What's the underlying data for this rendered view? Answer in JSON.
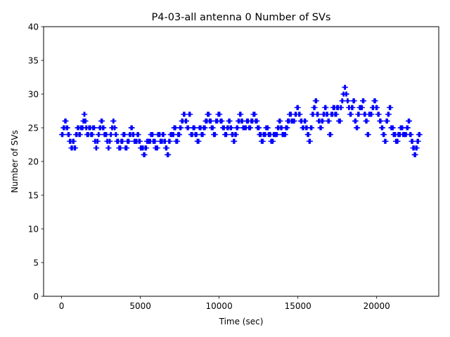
{
  "chart_data": {
    "type": "scatter",
    "title": "P4-03-all antenna 0 Number of SVs",
    "xlabel": "Time (sec)",
    "ylabel": "Number of SVs",
    "xlim": [
      -1140,
      23940
    ],
    "ylim": [
      0,
      40
    ],
    "xticks": [
      0,
      5000,
      10000,
      15000,
      20000
    ],
    "yticks": [
      0,
      5,
      10,
      15,
      20,
      25,
      30,
      35,
      40
    ],
    "marker": "+",
    "color": "#0000ff",
    "segments": [
      {
        "t0": 0,
        "t1": 500,
        "values": [
          24,
          25,
          26,
          25,
          24
        ]
      },
      {
        "t0": 500,
        "t1": 900,
        "values": [
          23,
          22,
          23,
          22
        ]
      },
      {
        "t0": 900,
        "t1": 1300,
        "values": [
          24,
          25,
          24,
          25
        ]
      },
      {
        "t0": 1300,
        "t1": 1600,
        "values": [
          25,
          26,
          27,
          26,
          25
        ]
      },
      {
        "t0": 1600,
        "t1": 2100,
        "values": [
          24,
          25,
          24,
          25
        ]
      },
      {
        "t0": 2100,
        "t1": 2400,
        "values": [
          23,
          22,
          23,
          24
        ]
      },
      {
        "t0": 2400,
        "t1": 2800,
        "values": [
          25,
          26,
          25,
          24
        ]
      },
      {
        "t0": 2800,
        "t1": 3100,
        "values": [
          24,
          23,
          22,
          23
        ]
      },
      {
        "t0": 3100,
        "t1": 3500,
        "values": [
          24,
          25,
          26,
          25,
          24
        ]
      },
      {
        "t0": 3500,
        "t1": 4300,
        "values": [
          23,
          22,
          23,
          24,
          22,
          23
        ]
      },
      {
        "t0": 4300,
        "t1": 4700,
        "values": [
          24,
          25,
          24,
          23
        ]
      },
      {
        "t0": 4700,
        "t1": 5100,
        "values": [
          23,
          24,
          23,
          22
        ]
      },
      {
        "t0": 5100,
        "t1": 5500,
        "values": [
          22,
          21,
          22,
          23
        ]
      },
      {
        "t0": 5500,
        "t1": 6400,
        "values": [
          23,
          24,
          23,
          22,
          24,
          23
        ]
      },
      {
        "t0": 6400,
        "t1": 7000,
        "values": [
          24,
          23,
          22,
          21,
          23,
          24
        ]
      },
      {
        "t0": 7000,
        "t1": 7500,
        "values": [
          24,
          25,
          23,
          24
        ]
      },
      {
        "t0": 7500,
        "t1": 8200,
        "values": [
          25,
          26,
          27,
          26,
          25,
          27
        ]
      },
      {
        "t0": 8200,
        "t1": 9000,
        "values": [
          24,
          25,
          24,
          23,
          25,
          24
        ]
      },
      {
        "t0": 9000,
        "t1": 9500,
        "values": [
          25,
          26,
          27,
          26
        ]
      },
      {
        "t0": 9500,
        "t1": 10500,
        "values": [
          25,
          24,
          26,
          27,
          26,
          25,
          24
        ]
      },
      {
        "t0": 10500,
        "t1": 11000,
        "values": [
          25,
          26,
          25,
          24,
          23
        ]
      },
      {
        "t0": 11000,
        "t1": 11600,
        "values": [
          24,
          25,
          26,
          27,
          26,
          25
        ]
      },
      {
        "t0": 11600,
        "t1": 12300,
        "values": [
          25,
          26,
          25,
          26,
          27
        ]
      },
      {
        "t0": 12300,
        "t1": 12800,
        "values": [
          26,
          25,
          24,
          23
        ]
      },
      {
        "t0": 12800,
        "t1": 13600,
        "values": [
          24,
          25,
          24,
          23,
          24
        ]
      },
      {
        "t0": 13600,
        "t1": 14100,
        "values": [
          24,
          25,
          26,
          25,
          24
        ]
      },
      {
        "t0": 14100,
        "t1": 14700,
        "values": [
          24,
          25,
          26,
          27,
          26
        ]
      },
      {
        "t0": 14700,
        "t1": 15400,
        "values": [
          26,
          27,
          28,
          27,
          26,
          25
        ]
      },
      {
        "t0": 15400,
        "t1": 15900,
        "values": [
          26,
          25,
          24,
          23,
          25
        ]
      },
      {
        "t0": 15900,
        "t1": 16500,
        "values": [
          27,
          28,
          29,
          27,
          26,
          25
        ]
      },
      {
        "t0": 16500,
        "t1": 17100,
        "values": [
          26,
          27,
          28,
          27,
          26,
          24
        ]
      },
      {
        "t0": 17100,
        "t1": 17700,
        "values": [
          27,
          28,
          27,
          28,
          26
        ]
      },
      {
        "t0": 17700,
        "t1": 18300,
        "values": [
          28,
          29,
          30,
          31,
          30,
          29,
          28
        ]
      },
      {
        "t0": 18300,
        "t1": 19000,
        "values": [
          27,
          28,
          29,
          26,
          25,
          27,
          28
        ]
      },
      {
        "t0": 19000,
        "t1": 19600,
        "values": [
          28,
          29,
          27,
          26,
          24,
          27
        ]
      },
      {
        "t0": 19600,
        "t1": 20300,
        "values": [
          27,
          28,
          29,
          28,
          27,
          26
        ]
      },
      {
        "t0": 20300,
        "t1": 20900,
        "values": [
          25,
          24,
          23,
          26,
          27,
          28
        ]
      },
      {
        "t0": 20900,
        "t1": 21800,
        "values": [
          25,
          24,
          23,
          24,
          25,
          24
        ]
      },
      {
        "t0": 21800,
        "t1": 22200,
        "values": [
          24,
          25,
          26,
          24
        ]
      },
      {
        "t0": 22200,
        "t1": 22750,
        "values": [
          23,
          22,
          21,
          22,
          23,
          24
        ]
      }
    ]
  }
}
